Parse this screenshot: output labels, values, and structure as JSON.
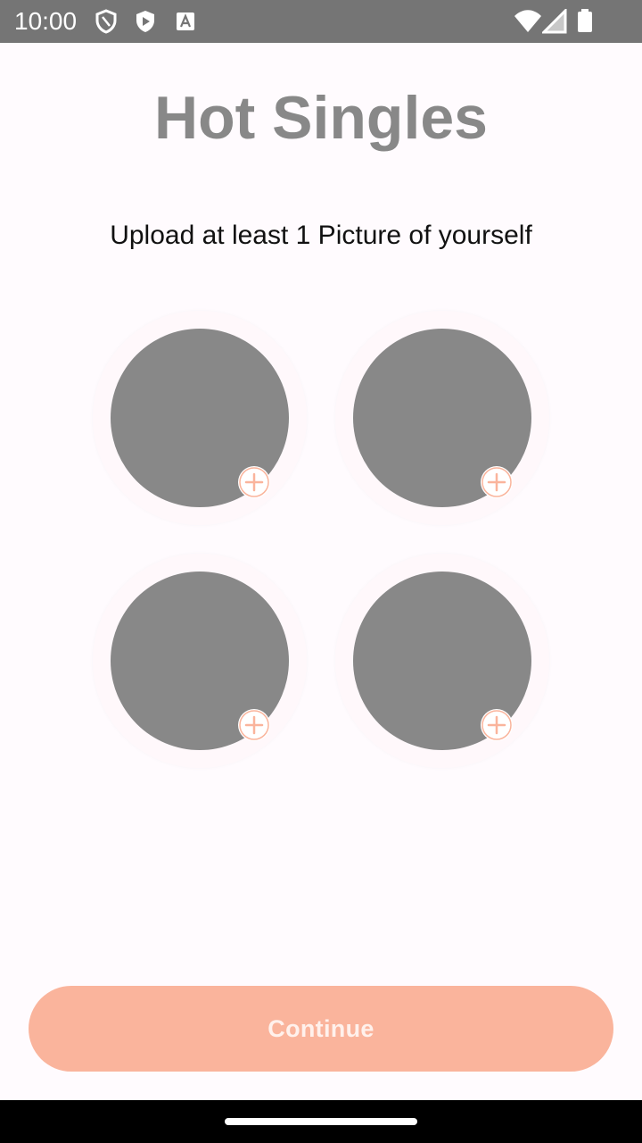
{
  "status_bar": {
    "time": "10:00",
    "left_icons": [
      "shield-outline-icon",
      "play-shield-icon",
      "font-a-icon"
    ],
    "right_icons": [
      "wifi-icon",
      "cell-signal-icon",
      "battery-icon"
    ],
    "background": "#757575"
  },
  "app": {
    "title": "Hot Singles",
    "subtitle": "Upload at least 1 Picture of yourself"
  },
  "photo_slots": [
    {
      "id": "slot-1",
      "add_icon": "plus-icon"
    },
    {
      "id": "slot-2",
      "add_icon": "plus-icon"
    },
    {
      "id": "slot-3",
      "add_icon": "plus-icon"
    },
    {
      "id": "slot-4",
      "add_icon": "plus-icon"
    }
  ],
  "continue_button": {
    "label": "Continue"
  },
  "colors": {
    "accent": "#FAB49C",
    "placeholder": "#888888",
    "title": "#888888",
    "background": "#FFFBFE"
  }
}
